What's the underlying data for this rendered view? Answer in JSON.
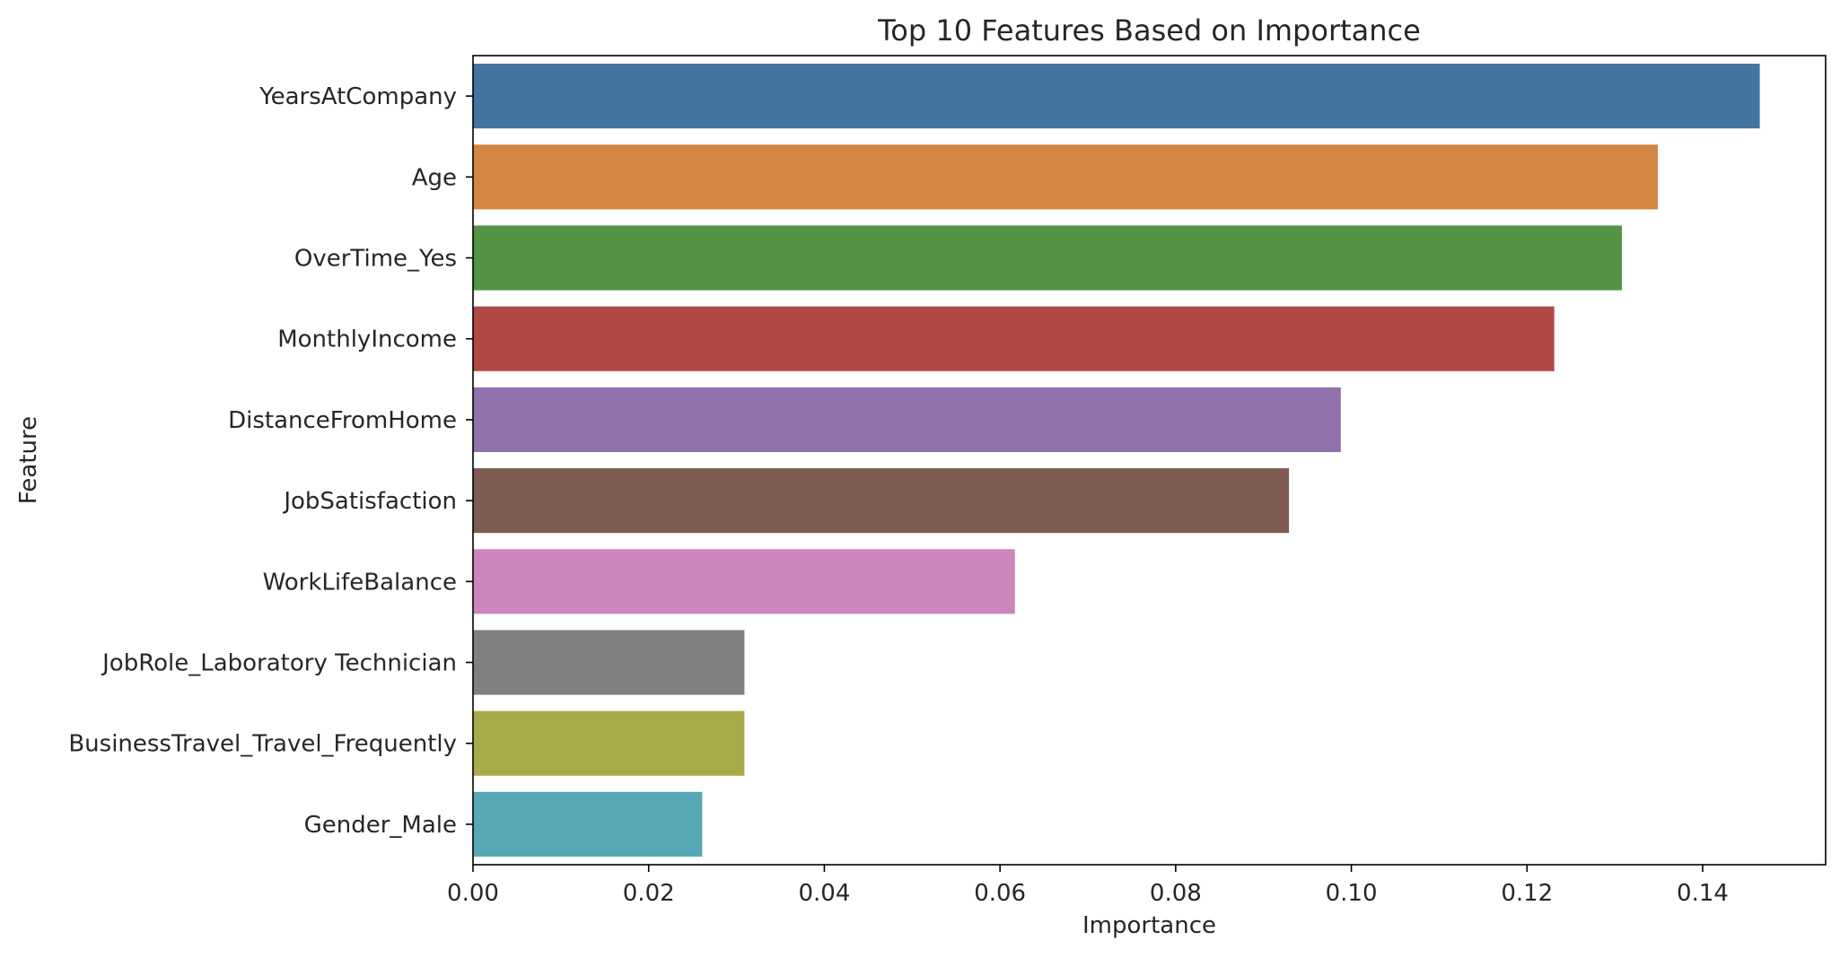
{
  "chart_data": {
    "type": "bar",
    "orientation": "horizontal",
    "title": "Top 10 Features Based on Importance",
    "xlabel": "Importance",
    "ylabel": "Feature",
    "categories": [
      "YearsAtCompany",
      "Age",
      "OverTime_Yes",
      "MonthlyIncome",
      "DistanceFromHome",
      "JobSatisfaction",
      "WorkLifeBalance",
      "JobRole_Laboratory Technician",
      "BusinessTravel_Travel_Frequently",
      "Gender_Male"
    ],
    "values": [
      0.1465,
      0.1349,
      0.1308,
      0.1231,
      0.0988,
      0.0929,
      0.0617,
      0.0309,
      0.0309,
      0.0261
    ],
    "colors": [
      "#4474a0",
      "#d38641",
      "#549345",
      "#b24846",
      "#8f72ac",
      "#7f5c53",
      "#cb87bc",
      "#808080",
      "#a9aa4a",
      "#57a8b5"
    ],
    "xlim": [
      0,
      0.154
    ],
    "xticks": [
      0.0,
      0.02,
      0.04,
      0.06,
      0.08,
      0.1,
      0.12,
      0.14
    ],
    "xtick_labels": [
      "0.00",
      "0.02",
      "0.04",
      "0.06",
      "0.08",
      "0.10",
      "0.12",
      "0.14"
    ],
    "grid": false,
    "legend": false
  }
}
